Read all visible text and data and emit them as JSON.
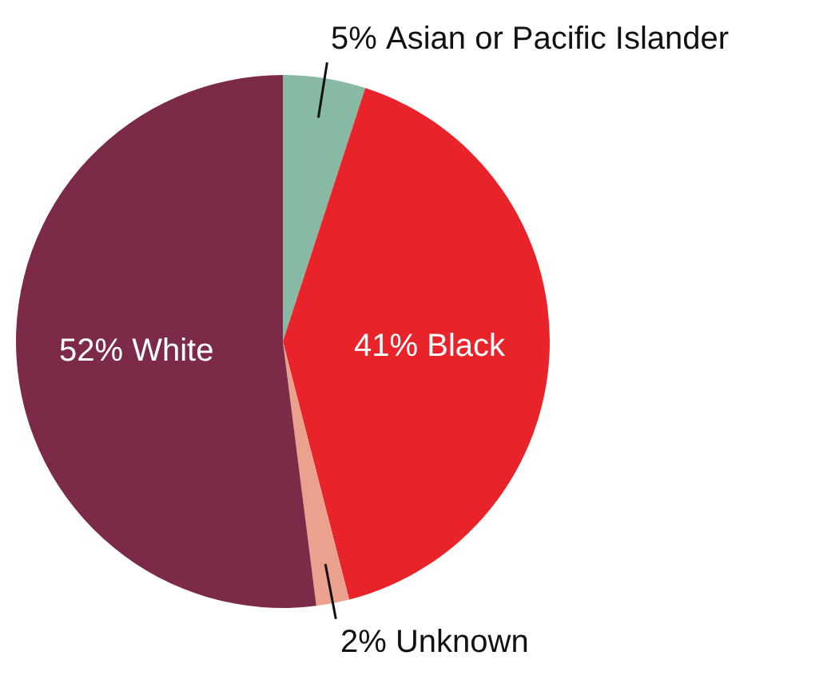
{
  "chart_data": {
    "type": "pie",
    "categories": [
      "Asian or Pacific Islander",
      "Black",
      "Unknown",
      "White"
    ],
    "values": [
      5,
      41,
      2,
      52
    ],
    "colors": [
      "#87b9a5",
      "#e8232a",
      "#eba18d",
      "#7c2a47"
    ],
    "value_labels": [
      "5%",
      "41%",
      "2%",
      "52%"
    ]
  }
}
